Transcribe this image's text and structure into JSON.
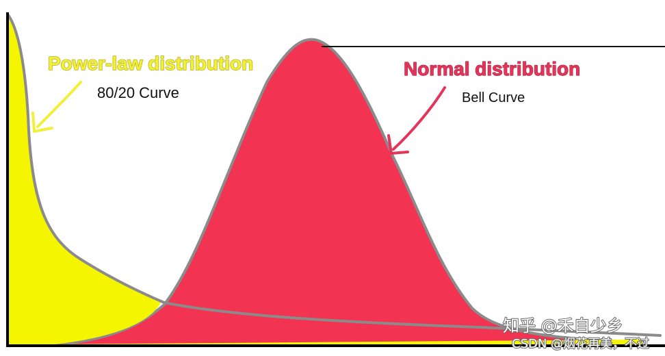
{
  "power_law": {
    "title": "Power-law distribution",
    "subtitle": "80/20 Curve",
    "color": "#f6f500",
    "title_color": "#f2ef3a"
  },
  "normal": {
    "title": "Normal distribution",
    "subtitle": "Bell Curve",
    "color": "#f23352",
    "title_color": "#e5345a"
  },
  "curve_outline_color": "#8b8b8b",
  "watermark": {
    "zhihu": "知乎 @禾自少乡",
    "csdn": "CSDN @烟花再美，不过"
  }
}
